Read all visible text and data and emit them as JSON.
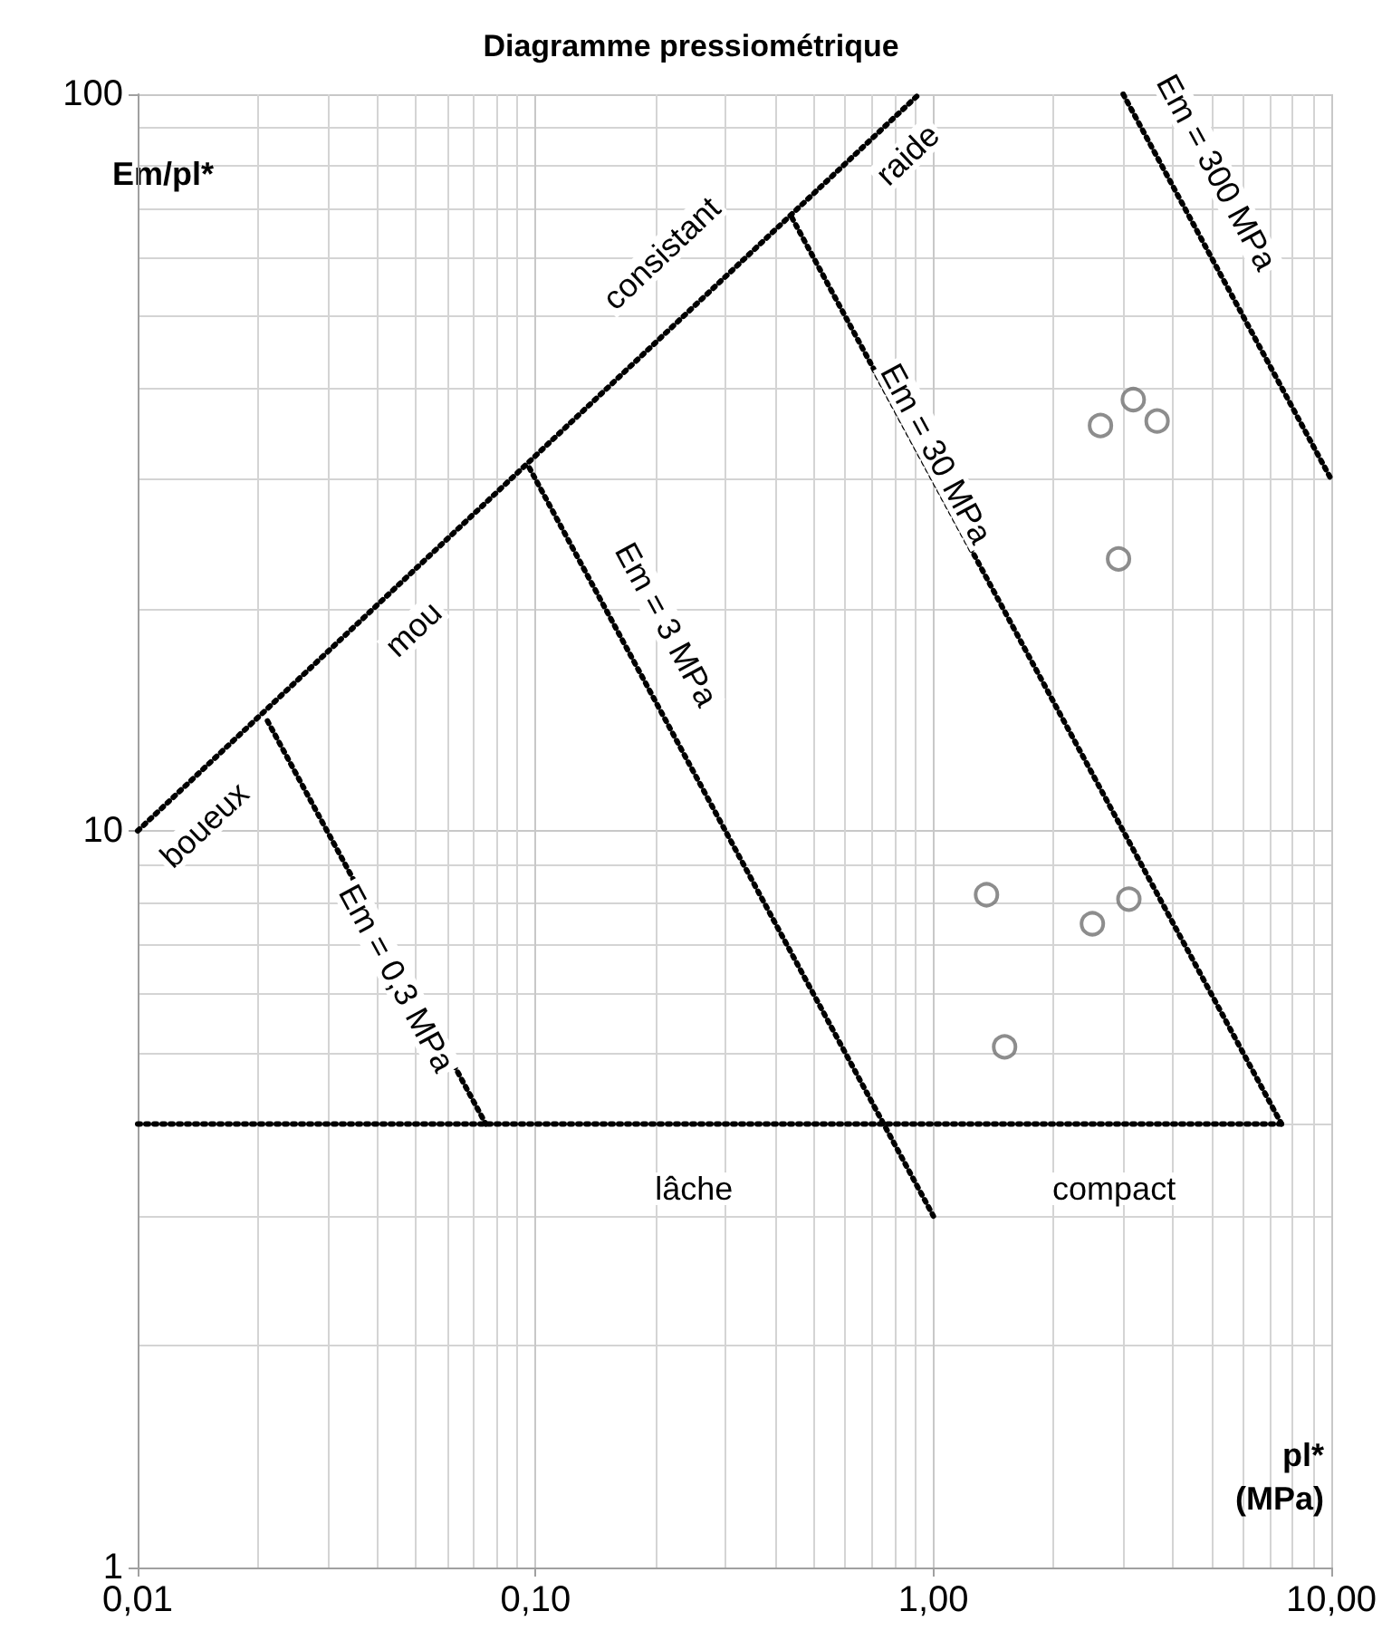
{
  "chart_data": {
    "type": "scatter",
    "title": "Diagramme pressiométrique",
    "xlabel": "pl*\n(MPa)",
    "ylabel": "Em/pl*",
    "log": "xy",
    "xlim": [
      0.01,
      10
    ],
    "ylim": [
      1,
      100
    ],
    "xticks": [
      {
        "value": 0.01,
        "label": "0,01"
      },
      {
        "value": 0.1,
        "label": "0,10"
      },
      {
        "value": 1,
        "label": "1,00"
      },
      {
        "value": 10,
        "label": "10,00"
      }
    ],
    "yticks": [
      1,
      10,
      100
    ],
    "grid": true,
    "marker": "circle",
    "series": [
      {
        "color": "#707070",
        "x": [
          2.63,
          3.18,
          3.65,
          2.92,
          1.36,
          3.1,
          2.51,
          1.51
        ],
        "values": [
          35.5,
          38.5,
          36.0,
          23.4,
          8.19,
          8.08,
          7.48,
          5.09
        ]
      },
      {
        "type": "line",
        "color": "#000000",
        "line_style": "dotted",
        "marker": "none",
        "x": [
          0.01,
          0.92
        ],
        "values": [
          10,
          100
        ]
      },
      {
        "type": "line",
        "color": "#000000",
        "line_style": "dotted",
        "marker": "none",
        "x": [
          0.01,
          7.5
        ],
        "values": [
          4,
          4
        ]
      },
      {
        "type": "line",
        "color": "#000000",
        "line_style": "dotted",
        "marker": "none",
        "x": [
          0.0212,
          0.075
        ],
        "values": [
          14.1,
          4
        ]
      },
      {
        "type": "line",
        "color": "#000000",
        "line_style": "dotted",
        "marker": "none",
        "x": [
          0.0965,
          1
        ],
        "values": [
          31.1,
          3
        ]
      },
      {
        "type": "line",
        "color": "#000000",
        "line_style": "dotted",
        "marker": "none",
        "x": [
          0.441,
          7.5
        ],
        "values": [
          68,
          4
        ]
      },
      {
        "type": "line",
        "color": "#000000",
        "line_style": "dotted",
        "marker": "none",
        "x": [
          3,
          10
        ],
        "values": [
          100,
          30
        ]
      }
    ],
    "annotations": [
      "boueux",
      "mou",
      "consistant",
      "raide",
      "lâche",
      "compact",
      "Em = 0,3 MPa",
      "Em = 3 MPa",
      "Em = 30 MPa",
      "Em = 300 MPa"
    ]
  }
}
